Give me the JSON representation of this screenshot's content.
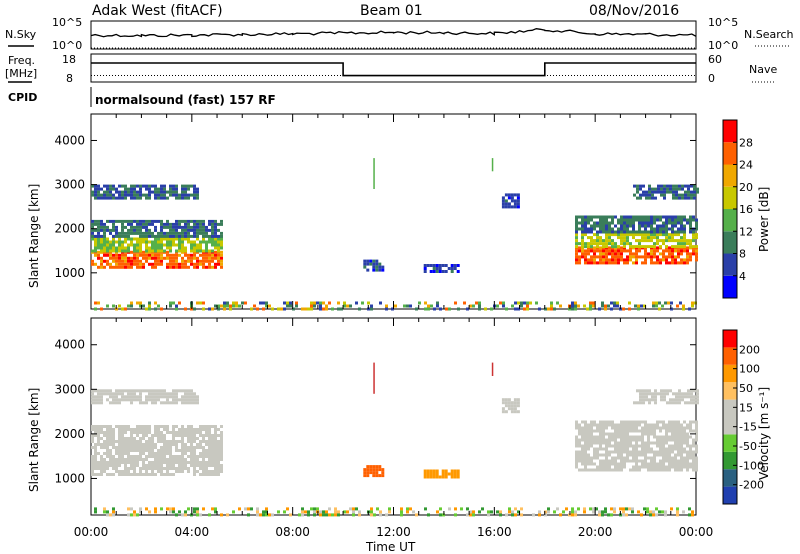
{
  "header": {
    "title": "Adak West (fitACF)",
    "beam": "Beam 01",
    "date": "08/Nov/2016"
  },
  "summary": {
    "nsky_label": "N.Sky",
    "nsky_ticks": [
      "10^5",
      "10^0"
    ],
    "nsearch_label": "N.Search",
    "nsearch_ticks": [
      "10^5",
      "10^0"
    ],
    "freq_label": "Freq.",
    "freq_unit": "[MHz]",
    "freq_ticks": [
      "18",
      "8"
    ],
    "nave_label": "Nave",
    "nave_ticks": [
      "60",
      "0"
    ],
    "cpid_label": "CPID",
    "cpid_text": "normalsound (fast) 157 RF"
  },
  "x_axis": {
    "label": "Time UT",
    "ticks": [
      "00:00",
      "04:00",
      "08:00",
      "12:00",
      "16:00",
      "20:00",
      "00:00"
    ]
  },
  "colorbars": {
    "power": {
      "label": "Power [dB]",
      "ticks": [
        "28",
        "24",
        "20",
        "16",
        "12",
        "8",
        "4"
      ],
      "colors": [
        "#0000ff",
        "#2a3fa8",
        "#3a7d5a",
        "#55b04a",
        "#c8c800",
        "#f0a800",
        "#ff6000",
        "#ff0000"
      ]
    },
    "velocity": {
      "label": "Velocity [m s⁻¹]",
      "ticks": [
        "200",
        "100",
        "50",
        "15",
        "-15",
        "-50",
        "-100",
        "-200"
      ],
      "colors": [
        "#ff0000",
        "#ff6000",
        "#ff9900",
        "#ffc060",
        "#c8c8c0",
        "#c8c8c0",
        "#66cc33",
        "#339933",
        "#2a6080",
        "#2040b0"
      ]
    }
  },
  "chart_data": [
    {
      "type": "line",
      "title": "Adak West (fitACF)",
      "series": [
        {
          "name": "N.Sky",
          "x": [
            "00:00",
            "02:00",
            "04:00",
            "06:00",
            "08:00",
            "10:00",
            "12:00",
            "14:00",
            "16:00",
            "18:00",
            "20:00",
            "22:00",
            "24:00"
          ],
          "values": [
            300,
            250,
            300,
            400,
            500,
            700,
            900,
            800,
            600,
            3000,
            500,
            400,
            300
          ]
        },
        {
          "name": "N.Search",
          "x": [
            "00:00",
            "24:00"
          ],
          "values": [
            1,
            1
          ]
        }
      ],
      "ylim_log10": [
        0,
        5
      ]
    },
    {
      "type": "line",
      "series": [
        {
          "name": "Freq.",
          "x": [
            "00:00",
            "10:00",
            "10:00",
            "18:00",
            "18:00",
            "24:00"
          ],
          "values": [
            14.8,
            14.8,
            10.3,
            10.3,
            14.8,
            14.8
          ]
        },
        {
          "name": "Nave",
          "x": [
            "00:00",
            "24:00"
          ],
          "values": [
            14,
            14
          ]
        }
      ],
      "ylim_freq": [
        8,
        18
      ],
      "ylim_nave": [
        0,
        60
      ]
    },
    {
      "type": "heatmap",
      "xlabel": "Time UT",
      "ylabel": "Slant Range [km]",
      "ylim": [
        180,
        4600
      ],
      "yticks": [
        "1000",
        "2000",
        "3000",
        "4000"
      ],
      "colorbar": "Power [dB]",
      "clim": [
        0,
        32
      ],
      "regions": [
        {
          "t0": 0.0,
          "t1": 5.2,
          "r0": 1100,
          "r1": 1500,
          "value": 26
        },
        {
          "t0": 0.0,
          "t1": 5.2,
          "r0": 1500,
          "r1": 1800,
          "value": 16
        },
        {
          "t0": 0.0,
          "t1": 5.2,
          "r0": 1800,
          "r1": 2200,
          "value": 9
        },
        {
          "t0": 0.0,
          "t1": 4.2,
          "r0": 2700,
          "r1": 3000,
          "value": 8
        },
        {
          "t0": 10.8,
          "t1": 11.6,
          "r0": 1050,
          "r1": 1300,
          "value": 6
        },
        {
          "t0": 13.2,
          "t1": 14.6,
          "r0": 1000,
          "r1": 1200,
          "value": 6
        },
        {
          "t0": 16.3,
          "t1": 17.0,
          "r0": 2500,
          "r1": 2800,
          "value": 6
        },
        {
          "t0": 19.2,
          "t1": 24.0,
          "r0": 1200,
          "r1": 1600,
          "value": 26
        },
        {
          "t0": 19.2,
          "t1": 24.0,
          "r0": 1600,
          "r1": 1900,
          "value": 17
        },
        {
          "t0": 19.2,
          "t1": 24.0,
          "r0": 1900,
          "r1": 2300,
          "value": 9
        },
        {
          "t0": 21.5,
          "t1": 24.0,
          "r0": 2700,
          "r1": 3000,
          "value": 8
        },
        {
          "t0": 0.0,
          "t1": 24.0,
          "r0": 180,
          "r1": 350,
          "value": 10
        }
      ]
    },
    {
      "type": "heatmap",
      "xlabel": "Time UT",
      "ylabel": "Slant Range [km]",
      "ylim": [
        180,
        4600
      ],
      "yticks": [
        "1000",
        "2000",
        "3000",
        "4000"
      ],
      "colorbar": "Velocity [m s⁻¹]",
      "clim": [
        -250,
        250
      ],
      "regions": [
        {
          "t0": 0.0,
          "t1": 5.2,
          "r0": 1100,
          "r1": 2200,
          "value": 0
        },
        {
          "t0": 0.0,
          "t1": 4.2,
          "r0": 2700,
          "r1": 3000,
          "value": 0
        },
        {
          "t0": 10.8,
          "t1": 11.6,
          "r0": 1050,
          "r1": 1300,
          "value": -130
        },
        {
          "t0": 13.2,
          "t1": 14.6,
          "r0": 1000,
          "r1": 1200,
          "value": -60
        },
        {
          "t0": 16.3,
          "t1": 17.0,
          "r0": 2500,
          "r1": 2800,
          "value": 0
        },
        {
          "t0": 19.2,
          "t1": 24.0,
          "r0": 1200,
          "r1": 2300,
          "value": 0
        },
        {
          "t0": 21.5,
          "t1": 24.0,
          "r0": 2700,
          "r1": 3000,
          "value": 0
        },
        {
          "t0": 0.0,
          "t1": 24.0,
          "r0": 180,
          "r1": 350,
          "value": -20
        }
      ]
    }
  ]
}
